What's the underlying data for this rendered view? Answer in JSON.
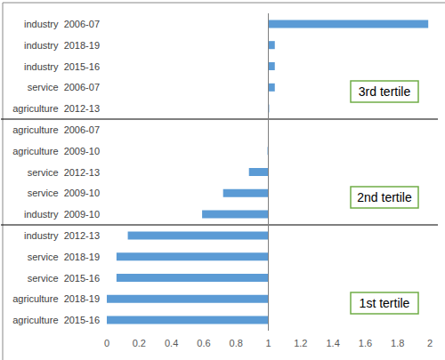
{
  "chart_data": {
    "type": "bar",
    "orientation": "horizontal",
    "categories": [
      "agriculture  2015-16",
      "agriculture  2018-19",
      "service  2015-16",
      "service  2018-19",
      "industry  2012-13",
      "industry  2009-10",
      "service  2009-10",
      "service  2012-13",
      "agriculture  2009-10",
      "agriculture  2006-07",
      "agriculture  2012-13",
      "service  2006-07",
      "industry  2015-16",
      "industry  2018-19",
      "industry  2006-07"
    ],
    "values": [
      0.0,
      0.0,
      0.06,
      0.06,
      0.13,
      0.59,
      0.72,
      0.88,
      0.995,
      1.002,
      1.005,
      1.04,
      1.04,
      1.04,
      1.99
    ],
    "baseline": 1,
    "color": "#5b9bd5",
    "xlim": [
      0,
      2
    ],
    "xticks": [
      0,
      0.2,
      0.4,
      0.6,
      0.8,
      1,
      1.2,
      1.4,
      1.6,
      1.8,
      2
    ],
    "grid": false,
    "annotations": [
      "1st tertile",
      "2nd tertile",
      "3rd tertile"
    ]
  }
}
